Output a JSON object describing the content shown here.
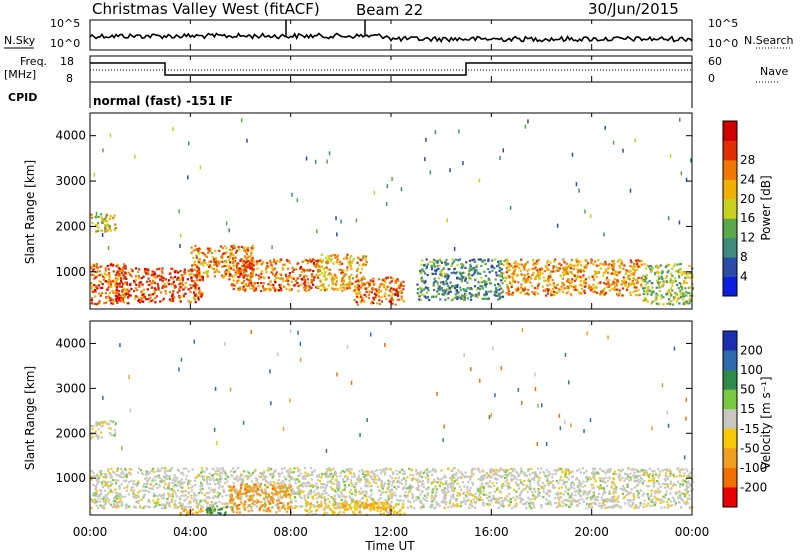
{
  "header": {
    "title": "Christmas Valley West (fitACF)",
    "beam": "Beam 22",
    "date": "30/Jun/2015"
  },
  "noise_panel": {
    "left_label": "N.Sky",
    "right_label": "N.Search",
    "left_ticks": [
      "10^5",
      "10^0"
    ],
    "right_ticks": [
      "10^5",
      "10^0"
    ]
  },
  "freq_panel": {
    "left_label_1": "Freq.",
    "left_label_2": "[MHz]",
    "right_label": "Nave",
    "left_ticks": [
      "18",
      "8"
    ],
    "right_ticks": [
      "60",
      "0"
    ]
  },
  "cpid_panel": {
    "label": "CPID",
    "text": "normal (fast) -151 IF"
  },
  "x_axis": {
    "label": "Time UT",
    "ticks": [
      "00:00",
      "04:00",
      "08:00",
      "12:00",
      "16:00",
      "20:00",
      "00:00"
    ]
  },
  "y_axis": {
    "label": "Slant Range [km]",
    "ticks": [
      "1000",
      "2000",
      "3000",
      "4000"
    ]
  },
  "power_scale": {
    "label": "Power [dB]",
    "ticks": [
      "4",
      "8",
      "12",
      "16",
      "20",
      "24",
      "28"
    ],
    "colors": [
      "#0b1ee0",
      "#2c4aa8",
      "#3f8a7a",
      "#5aa84a",
      "#c8d020",
      "#f0b000",
      "#f07800",
      "#e03000",
      "#d00000"
    ]
  },
  "velocity_scale": {
    "label": "Velocity [m s⁻¹]",
    "ticks": [
      "200",
      "100",
      "50",
      "15",
      "-15",
      "-50",
      "-100",
      "-200"
    ],
    "colors": [
      "#1a30b0",
      "#2f6ab0",
      "#2e8a4a",
      "#78c840",
      "#c8c8c0",
      "#f8c800",
      "#f0a020",
      "#f07000",
      "#e80000"
    ]
  },
  "chart_data": [
    {
      "type": "heatmap",
      "title": "Power",
      "xlabel": "Time UT",
      "ylabel": "Slant Range [km]",
      "xlim": [
        0,
        24
      ],
      "ylim": [
        180,
        4500
      ],
      "colorbar": {
        "label": "Power [dB]",
        "range": [
          0,
          32
        ]
      },
      "echo_regions": [
        {
          "t_start": 0.0,
          "t_end": 1.5,
          "range_low": 300,
          "range_high": 1200,
          "power_db": 24
        },
        {
          "t_start": 0.0,
          "t_end": 1.0,
          "range_low": 1900,
          "range_high": 2300,
          "power_db": 18
        },
        {
          "t_start": 1.0,
          "t_end": 4.5,
          "range_low": 350,
          "range_high": 1100,
          "power_db": 26
        },
        {
          "t_start": 4.0,
          "t_end": 6.5,
          "range_low": 900,
          "range_high": 1600,
          "power_db": 22
        },
        {
          "t_start": 5.5,
          "t_end": 9.0,
          "range_low": 600,
          "range_high": 1300,
          "power_db": 24
        },
        {
          "t_start": 9.0,
          "t_end": 11.0,
          "range_low": 600,
          "range_high": 1400,
          "power_db": 20
        },
        {
          "t_start": 10.5,
          "t_end": 12.5,
          "range_low": 300,
          "range_high": 900,
          "power_db": 24
        },
        {
          "t_start": 13.0,
          "t_end": 16.5,
          "range_low": 400,
          "range_high": 1300,
          "power_db": 10
        },
        {
          "t_start": 16.5,
          "t_end": 22.0,
          "range_low": 500,
          "range_high": 1300,
          "power_db": 22
        },
        {
          "t_start": 22.0,
          "t_end": 24.0,
          "range_low": 300,
          "range_high": 1200,
          "power_db": 14
        }
      ]
    },
    {
      "type": "heatmap",
      "title": "Velocity",
      "xlabel": "Time UT",
      "ylabel": "Slant Range [km]",
      "xlim": [
        0,
        24
      ],
      "ylim": [
        180,
        4500
      ],
      "colorbar": {
        "label": "Velocity [m s⁻¹]",
        "range": [
          -250,
          250
        ]
      },
      "echo_regions": [
        {
          "t_start": 0.0,
          "t_end": 1.0,
          "range_low": 1900,
          "range_high": 2300,
          "velocity": 0
        },
        {
          "t_start": 0.0,
          "t_end": 24.0,
          "range_low": 350,
          "range_high": 1250,
          "velocity": 0
        },
        {
          "t_start": 5.5,
          "t_end": 8.0,
          "range_low": 250,
          "range_high": 900,
          "velocity": -60
        },
        {
          "t_start": 3.5,
          "t_end": 5.0,
          "range_low": 200,
          "range_high": 350,
          "velocity": -40
        },
        {
          "t_start": 4.5,
          "t_end": 5.5,
          "range_low": 200,
          "range_high": 400,
          "velocity": 40
        },
        {
          "t_start": 8.5,
          "t_end": 12.5,
          "range_low": 200,
          "range_high": 500,
          "velocity": -30
        },
        {
          "t_start": 10.5,
          "t_end": 12.0,
          "range_low": 300,
          "range_high": 500,
          "velocity": -50
        }
      ]
    }
  ]
}
